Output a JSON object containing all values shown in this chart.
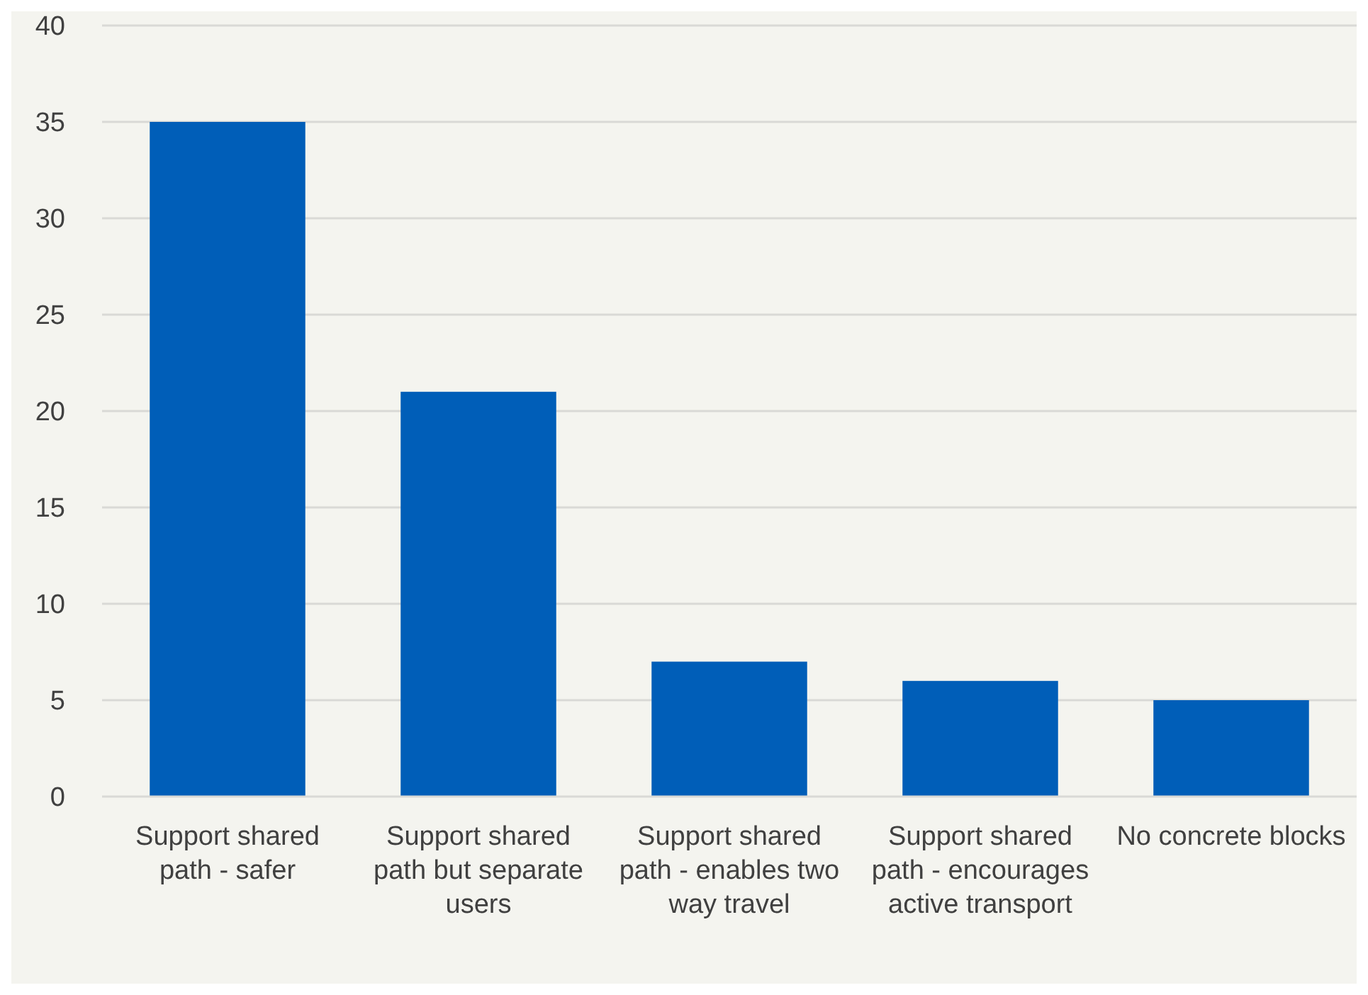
{
  "chart_data": {
    "type": "bar",
    "categories": [
      "Support shared path - safer",
      "Support shared path but separate users",
      "Support shared path - enables two way travel",
      "Support shared path - encourages active transport",
      "No concrete blocks"
    ],
    "values": [
      35,
      21,
      7,
      6,
      5
    ],
    "color": "#005eb8",
    "ylim": [
      0,
      40
    ],
    "yticks": [
      0,
      5,
      10,
      15,
      20,
      25,
      30,
      35,
      40
    ],
    "grid": "y"
  }
}
